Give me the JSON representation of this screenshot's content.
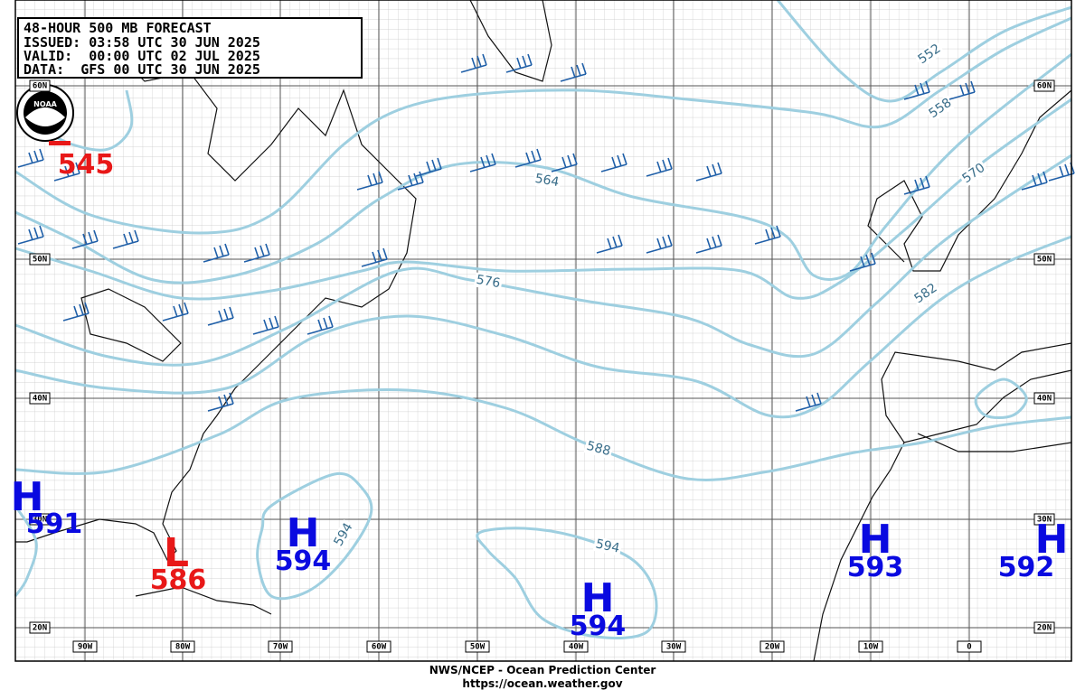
{
  "header": {
    "lines": [
      "48-HOUR 500 MB FORECAST",
      "ISSUED: 03:58 UTC 30 JUN 2025",
      "VALID:  00:00 UTC 02 JUL 2025",
      "DATA:  GFS 00 UTC 30 JUN 2025"
    ]
  },
  "logo": "NOAA",
  "latitude_labels": [
    "60N",
    "50N",
    "40N",
    "30N",
    "20N"
  ],
  "longitude_labels": [
    "90W",
    "80W",
    "70W",
    "60W",
    "50W",
    "40W",
    "30W",
    "20W",
    "10W",
    "0"
  ],
  "contour_labels": [
    "552",
    "558",
    "564",
    "570",
    "576",
    "582",
    "588",
    "594",
    "594"
  ],
  "centers": [
    {
      "symbol": "H",
      "value": "591"
    },
    {
      "symbol": "L",
      "value": "586"
    },
    {
      "symbol": "H",
      "value": "594"
    },
    {
      "symbol": "H",
      "value": "594"
    },
    {
      "symbol": "H",
      "value": "593"
    },
    {
      "symbol": "H",
      "value": "592"
    }
  ],
  "low_value": "545",
  "footer": {
    "line1": "NWS/NCEP - Ocean Prediction Center",
    "line2": "https://ocean.weather.gov"
  }
}
